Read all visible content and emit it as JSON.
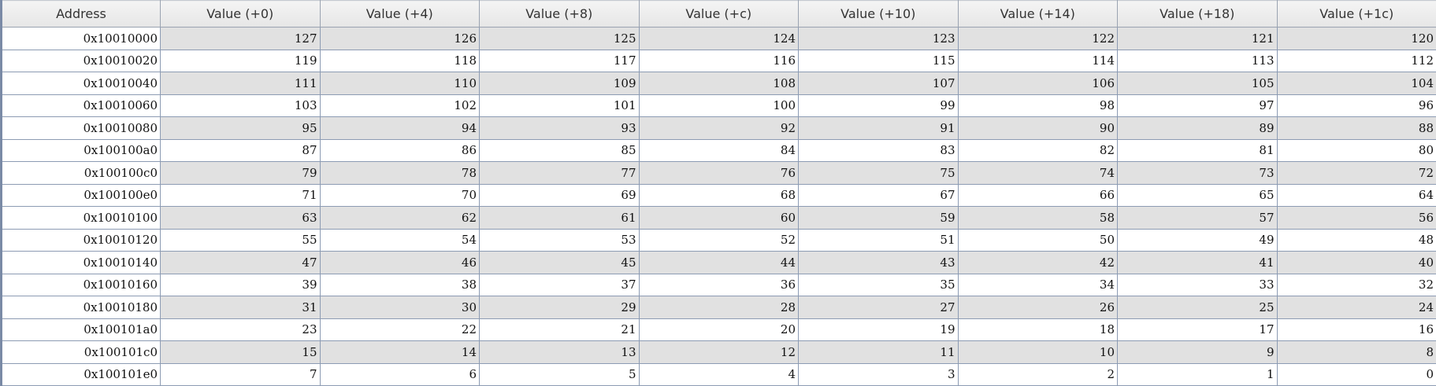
{
  "table": {
    "columns": [
      "Address",
      "Value (+0)",
      "Value (+4)",
      "Value (+8)",
      "Value (+c)",
      "Value (+10)",
      "Value (+14)",
      "Value (+18)",
      "Value (+1c)"
    ],
    "rows": [
      {
        "address": "0x10010000",
        "values": [
          "127",
          "126",
          "125",
          "124",
          "123",
          "122",
          "121",
          "120"
        ]
      },
      {
        "address": "0x10010020",
        "values": [
          "119",
          "118",
          "117",
          "116",
          "115",
          "114",
          "113",
          "112"
        ]
      },
      {
        "address": "0x10010040",
        "values": [
          "111",
          "110",
          "109",
          "108",
          "107",
          "106",
          "105",
          "104"
        ]
      },
      {
        "address": "0x10010060",
        "values": [
          "103",
          "102",
          "101",
          "100",
          "99",
          "98",
          "97",
          "96"
        ]
      },
      {
        "address": "0x10010080",
        "values": [
          "95",
          "94",
          "93",
          "92",
          "91",
          "90",
          "89",
          "88"
        ]
      },
      {
        "address": "0x100100a0",
        "values": [
          "87",
          "86",
          "85",
          "84",
          "83",
          "82",
          "81",
          "80"
        ]
      },
      {
        "address": "0x100100c0",
        "values": [
          "79",
          "78",
          "77",
          "76",
          "75",
          "74",
          "73",
          "72"
        ]
      },
      {
        "address": "0x100100e0",
        "values": [
          "71",
          "70",
          "69",
          "68",
          "67",
          "66",
          "65",
          "64"
        ]
      },
      {
        "address": "0x10010100",
        "values": [
          "63",
          "62",
          "61",
          "60",
          "59",
          "58",
          "57",
          "56"
        ]
      },
      {
        "address": "0x10010120",
        "values": [
          "55",
          "54",
          "53",
          "52",
          "51",
          "50",
          "49",
          "48"
        ]
      },
      {
        "address": "0x10010140",
        "values": [
          "47",
          "46",
          "45",
          "44",
          "43",
          "42",
          "41",
          "40"
        ]
      },
      {
        "address": "0x10010160",
        "values": [
          "39",
          "38",
          "37",
          "36",
          "35",
          "34",
          "33",
          "32"
        ]
      },
      {
        "address": "0x10010180",
        "values": [
          "31",
          "30",
          "29",
          "28",
          "27",
          "26",
          "25",
          "24"
        ]
      },
      {
        "address": "0x100101a0",
        "values": [
          "23",
          "22",
          "21",
          "20",
          "19",
          "18",
          "17",
          "16"
        ]
      },
      {
        "address": "0x100101c0",
        "values": [
          "15",
          "14",
          "13",
          "12",
          "11",
          "10",
          "9",
          "8"
        ]
      },
      {
        "address": "0x100101e0",
        "values": [
          "7",
          "6",
          "5",
          "4",
          "3",
          "2",
          "1",
          "0"
        ]
      }
    ]
  }
}
